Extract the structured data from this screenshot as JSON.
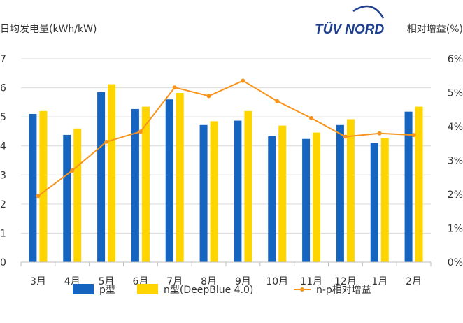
{
  "logo": {
    "text": "TÜV NORD"
  },
  "chart_data": {
    "type": "bar",
    "categories": [
      "3月",
      "4月",
      "5月",
      "6月",
      "7月",
      "8月",
      "9月",
      "10月",
      "11月",
      "12月",
      "1月",
      "2月"
    ],
    "series": [
      {
        "name": "p型",
        "type": "bar",
        "axis": "left",
        "color": "#1565c0",
        "values": [
          5.1,
          4.38,
          5.85,
          5.27,
          5.6,
          4.72,
          4.87,
          4.33,
          4.24,
          4.72,
          4.1,
          5.18
        ]
      },
      {
        "name": "n型(DeepBlue 4.0)",
        "type": "bar",
        "axis": "left",
        "color": "#ffd500",
        "values": [
          5.2,
          4.6,
          6.12,
          5.35,
          5.82,
          4.85,
          5.2,
          4.7,
          4.46,
          4.92,
          4.27,
          5.35
        ]
      },
      {
        "name": "n-p相对增益",
        "type": "line",
        "axis": "right",
        "color": "#f7941d",
        "values": [
          1.95,
          2.7,
          3.55,
          3.85,
          5.15,
          4.9,
          5.35,
          4.75,
          4.25,
          3.7,
          3.8,
          3.75
        ]
      }
    ],
    "ylabel_left": "日均发电量(kWh/kW)",
    "ylabel_right": "相对增益(%)",
    "ylim_left": [
      0,
      7
    ],
    "yticks_left": [
      "0",
      "1",
      "2",
      "3",
      "4",
      "5",
      "6",
      "7"
    ],
    "ylim_right": [
      0,
      6
    ],
    "yticks_right": [
      "0%",
      "1%",
      "2%",
      "3%",
      "4%",
      "5%",
      "6%"
    ],
    "grid": true,
    "legend_position": "bottom"
  }
}
